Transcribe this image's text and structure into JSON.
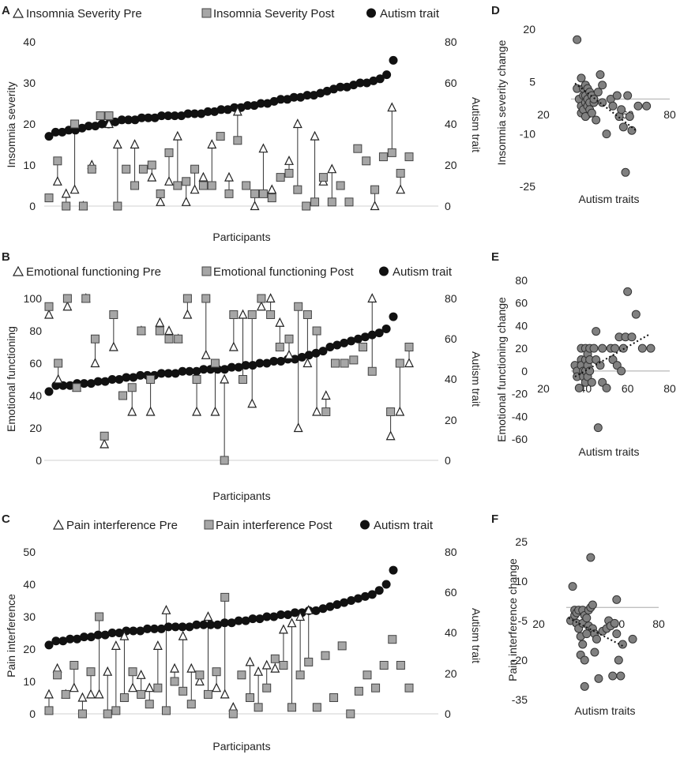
{
  "chart_data": [
    {
      "panel": "A",
      "type": "scatter",
      "legend": [
        "Insomnia Severity Pre",
        "Insomnia Severity Post",
        "Autism trait"
      ],
      "ylabel": "Insomnia severity",
      "y2label": "Autism trait",
      "xlabel": "Participants",
      "ylim": [
        0,
        40
      ],
      "y2lim": [
        0,
        80
      ],
      "yticks": [
        "0",
        "10",
        "20",
        "30",
        "40"
      ],
      "y2ticks": [
        "0",
        "20",
        "40",
        "60",
        "80"
      ],
      "pre": [
        null,
        6,
        3,
        4,
        0,
        10,
        null,
        20,
        15,
        null,
        15,
        null,
        7,
        1,
        6,
        17,
        1,
        4,
        7,
        15,
        null,
        7,
        23,
        null,
        0,
        14,
        4,
        null,
        11,
        20,
        null,
        17,
        6,
        9,
        null,
        null,
        null,
        null,
        0,
        null,
        24,
        4,
        null
      ],
      "post": [
        2,
        11,
        0,
        20,
        0,
        9,
        22,
        22,
        0,
        9,
        5,
        9,
        10,
        3,
        13,
        5,
        6,
        9,
        5,
        5,
        17,
        3,
        16,
        5,
        3,
        3,
        2,
        7,
        8,
        4,
        0,
        1,
        7,
        1,
        5,
        1,
        14,
        11,
        4,
        12,
        13,
        8,
        12
      ],
      "trait": [
        34,
        36,
        36,
        37,
        37,
        38,
        39,
        39,
        40,
        40,
        41,
        42,
        42,
        42,
        43,
        43,
        43,
        44,
        44,
        44,
        44,
        45,
        45,
        45,
        46,
        46,
        47,
        47,
        48,
        48,
        49,
        49,
        50,
        50,
        51,
        52,
        52,
        53,
        53,
        54,
        54,
        55,
        56,
        57,
        58,
        58,
        59,
        60,
        60,
        61,
        62,
        64,
        71
      ]
    },
    {
      "panel": "B",
      "type": "scatter",
      "legend": [
        "Emotional functioning Pre",
        "Emotional functioning Post",
        "Autism trait"
      ],
      "ylabel": "Emotional functioning",
      "y2label": "Autism trait",
      "xlabel": "Participants",
      "ylim": [
        0,
        100
      ],
      "y2lim": [
        0,
        80
      ],
      "yticks": [
        "0",
        "20",
        "40",
        "60",
        "80",
        "100"
      ],
      "y2ticks": [
        "0",
        "20",
        "40",
        "60",
        "80"
      ],
      "pre": [
        90,
        50,
        95,
        45,
        100,
        60,
        10,
        70,
        null,
        30,
        80,
        30,
        85,
        80,
        75,
        90,
        30,
        65,
        30,
        50,
        70,
        90,
        35,
        95,
        100,
        85,
        65,
        20,
        60,
        30,
        40,
        null,
        null,
        null,
        null,
        100,
        null,
        15,
        30,
        60
      ],
      "post": [
        95,
        60,
        100,
        45,
        100,
        75,
        15,
        90,
        40,
        45,
        80,
        50,
        80,
        75,
        75,
        100,
        50,
        100,
        60,
        0,
        90,
        50,
        90,
        100,
        90,
        70,
        75,
        95,
        90,
        80,
        30,
        60,
        60,
        62,
        70,
        55,
        null,
        30,
        60,
        70
      ],
      "trait": [
        34,
        37,
        37,
        37,
        38,
        38,
        38,
        39,
        39,
        40,
        40,
        41,
        41,
        42,
        42,
        42,
        43,
        43,
        43,
        44,
        44,
        44,
        45,
        45,
        45,
        45,
        46,
        46,
        47,
        47,
        48,
        48,
        49,
        49,
        50,
        50,
        51,
        52,
        53,
        54,
        56,
        57,
        58,
        59,
        60,
        61,
        62,
        63,
        65,
        71
      ]
    },
    {
      "panel": "C",
      "type": "scatter",
      "legend": [
        "Pain interference Pre",
        "Pain interference Post",
        "Autism trait"
      ],
      "ylabel": "Pain interference",
      "y2label": "Autism trait",
      "xlabel": "Participants",
      "ylim": [
        0,
        50
      ],
      "y2lim": [
        0,
        80
      ],
      "yticks": [
        "0",
        "10",
        "20",
        "30",
        "40",
        "50"
      ],
      "y2ticks": [
        "0",
        "20",
        "40",
        "60",
        "80"
      ],
      "pre": [
        6,
        14,
        6,
        8,
        5,
        6,
        6,
        13,
        21,
        24,
        8,
        12,
        8,
        21,
        32,
        14,
        24,
        14,
        10,
        30,
        8,
        6,
        2,
        null,
        16,
        13,
        15,
        14,
        26,
        28,
        30,
        32
      ],
      "post": [
        1,
        12,
        6,
        15,
        0,
        13,
        30,
        0,
        1,
        5,
        13,
        6,
        3,
        8,
        1,
        10,
        7,
        3,
        12,
        6,
        13,
        36,
        0,
        12,
        5,
        2,
        8,
        17,
        15,
        2,
        12,
        16,
        2,
        18,
        5,
        21,
        0,
        7,
        12,
        8,
        15,
        23,
        15,
        8
      ],
      "trait": [
        34,
        36,
        36,
        37,
        37,
        38,
        38,
        39,
        39,
        40,
        40,
        41,
        41,
        41,
        42,
        42,
        42,
        43,
        43,
        43,
        43,
        44,
        44,
        44,
        44,
        45,
        45,
        46,
        46,
        47,
        47,
        48,
        48,
        49,
        49,
        50,
        50,
        51,
        51,
        52,
        53,
        54,
        55,
        56,
        57,
        58,
        59,
        61,
        64,
        71
      ]
    },
    {
      "panel": "D",
      "type": "scatter",
      "ylabel": "Insomnia severity change",
      "xlabel": "Autism traits",
      "xlim": [
        20,
        80
      ],
      "ylim": [
        -25,
        20
      ],
      "y_zero": 0,
      "xticks": [
        "20",
        "40",
        "60",
        "80"
      ],
      "yticks": [
        "20",
        "5",
        "-10",
        "-25"
      ],
      "points": [
        [
          36,
          17
        ],
        [
          36,
          3
        ],
        [
          37,
          0
        ],
        [
          38,
          -2
        ],
        [
          38,
          -4
        ],
        [
          38,
          6
        ],
        [
          39,
          1
        ],
        [
          39,
          3
        ],
        [
          39,
          -3
        ],
        [
          40,
          4
        ],
        [
          40,
          1
        ],
        [
          40,
          -1
        ],
        [
          40,
          -5
        ],
        [
          41,
          3
        ],
        [
          41,
          0
        ],
        [
          41,
          -2
        ],
        [
          42,
          2
        ],
        [
          42,
          -1
        ],
        [
          42,
          -3
        ],
        [
          43,
          1
        ],
        [
          43,
          -4
        ],
        [
          44,
          -1
        ],
        [
          44,
          0
        ],
        [
          45,
          -6
        ],
        [
          46,
          2
        ],
        [
          47,
          7
        ],
        [
          48,
          4
        ],
        [
          48,
          -1
        ],
        [
          50,
          -10
        ],
        [
          52,
          0
        ],
        [
          53,
          -2
        ],
        [
          55,
          1
        ],
        [
          56,
          -5
        ],
        [
          57,
          -3
        ],
        [
          58,
          -8
        ],
        [
          59,
          -21
        ],
        [
          60,
          1
        ],
        [
          61,
          -5
        ],
        [
          62,
          -9
        ],
        [
          65,
          -2
        ],
        [
          69,
          -2
        ]
      ],
      "trend": [
        [
          35,
          4.5
        ],
        [
          64,
          -9
        ]
      ]
    },
    {
      "panel": "E",
      "type": "scatter",
      "ylabel": "Emotional functioning change",
      "xlabel": "Autism traits",
      "xlim": [
        20,
        80
      ],
      "ylim": [
        -60,
        80
      ],
      "y_zero": 0,
      "xticks": [
        "20",
        "40",
        "60",
        "80"
      ],
      "yticks": [
        "80",
        "60",
        "40",
        "20",
        "0",
        "-20",
        "-40",
        "-60"
      ],
      "points": [
        [
          35,
          5
        ],
        [
          36,
          0
        ],
        [
          36,
          -5
        ],
        [
          37,
          -15
        ],
        [
          38,
          20
        ],
        [
          38,
          10
        ],
        [
          38,
          5
        ],
        [
          39,
          0
        ],
        [
          39,
          -5
        ],
        [
          40,
          20
        ],
        [
          40,
          10
        ],
        [
          40,
          0
        ],
        [
          40,
          -10
        ],
        [
          41,
          15
        ],
        [
          41,
          5
        ],
        [
          41,
          -5
        ],
        [
          42,
          20
        ],
        [
          42,
          10
        ],
        [
          42,
          0
        ],
        [
          43,
          -10
        ],
        [
          44,
          20
        ],
        [
          45,
          35
        ],
        [
          45,
          10
        ],
        [
          46,
          -50
        ],
        [
          47,
          5
        ],
        [
          48,
          20
        ],
        [
          48,
          -10
        ],
        [
          50,
          -15
        ],
        [
          52,
          20
        ],
        [
          53,
          10
        ],
        [
          54,
          20
        ],
        [
          55,
          5
        ],
        [
          56,
          30
        ],
        [
          57,
          0
        ],
        [
          58,
          20
        ],
        [
          59,
          30
        ],
        [
          60,
          70
        ],
        [
          62,
          30
        ],
        [
          64,
          50
        ],
        [
          67,
          20
        ],
        [
          71,
          20
        ]
      ],
      "trend": [
        [
          35,
          -5
        ],
        [
          70,
          32
        ]
      ]
    },
    {
      "panel": "F",
      "type": "scatter",
      "ylabel": "Pain interference change",
      "xlabel": "Autism traits",
      "xlim": [
        20,
        80
      ],
      "ylim": [
        -35,
        25
      ],
      "y_zero": 0,
      "xticks": [
        "20",
        "40",
        "60",
        "80"
      ],
      "yticks": [
        "25",
        "10",
        "-5",
        "-20",
        "-35"
      ],
      "points": [
        [
          36,
          -5
        ],
        [
          37,
          8
        ],
        [
          38,
          -3
        ],
        [
          38,
          -1
        ],
        [
          39,
          -2
        ],
        [
          39,
          -6
        ],
        [
          40,
          -8
        ],
        [
          40,
          -1
        ],
        [
          41,
          -11
        ],
        [
          41,
          -18
        ],
        [
          42,
          -14
        ],
        [
          42,
          -6
        ],
        [
          42,
          -1
        ],
        [
          43,
          -3
        ],
        [
          43,
          -20
        ],
        [
          43,
          -30
        ],
        [
          44,
          -10
        ],
        [
          44,
          -4
        ],
        [
          45,
          -7
        ],
        [
          45,
          -1
        ],
        [
          46,
          19
        ],
        [
          46,
          0
        ],
        [
          47,
          1
        ],
        [
          47,
          -8
        ],
        [
          48,
          -17
        ],
        [
          48,
          -10
        ],
        [
          49,
          -12
        ],
        [
          50,
          -27
        ],
        [
          52,
          -9
        ],
        [
          54,
          -8
        ],
        [
          55,
          -5
        ],
        [
          56,
          -7
        ],
        [
          57,
          -26
        ],
        [
          58,
          -6
        ],
        [
          59,
          3
        ],
        [
          59,
          -10
        ],
        [
          60,
          -20
        ],
        [
          61,
          -26
        ],
        [
          62,
          -14
        ],
        [
          67,
          -12
        ]
      ],
      "trend": [
        [
          35,
          -4
        ],
        [
          63,
          -15
        ]
      ]
    }
  ]
}
